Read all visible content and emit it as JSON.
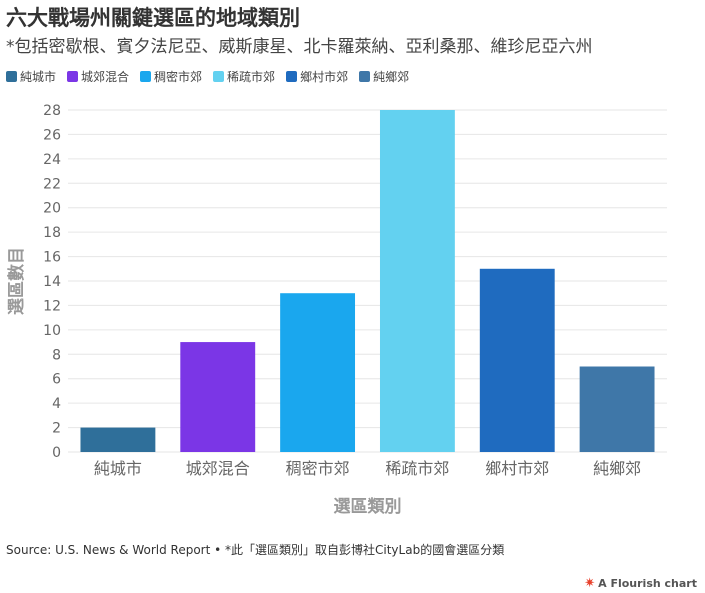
{
  "header": {
    "title": "六大戰場州關鍵選區的地域類別",
    "subtitle": "*包括密歇根、賓夕法尼亞、威斯康星、北卡羅萊納、亞利桑那、維珍尼亞六州"
  },
  "footer": {
    "source": "Source: U.S. News & World Report • *此「選區類別」取自彭博社CityLab的國會選區分類",
    "credit": "A Flourish chart",
    "credit_icon": "flourish-logo-icon"
  },
  "colors": {
    "grid": "#e6e6e6",
    "axis_label": "#999999",
    "tick_label": "#666666"
  },
  "chart_data": {
    "type": "bar",
    "categories": [
      "純城市",
      "城郊混合",
      "稠密市郊",
      "稀疏市郊",
      "鄉村市郊",
      "純鄉郊"
    ],
    "values": [
      2,
      9,
      13,
      28,
      15,
      7
    ],
    "colors": [
      "#2f6f9a",
      "#7b36e6",
      "#1aa7ee",
      "#63d1f0",
      "#1f6bbf",
      "#3f77a8"
    ],
    "legend": [
      "純城市",
      "城郊混合",
      "稠密市郊",
      "稀疏市郊",
      "鄉村市郊",
      "純鄉郊"
    ],
    "legend_position": "top-left",
    "xlabel": "選區類別",
    "ylabel": "選區數目",
    "ylim": [
      0,
      28
    ],
    "yticks": [
      0,
      2,
      4,
      6,
      8,
      10,
      12,
      14,
      16,
      18,
      20,
      22,
      24,
      26,
      28
    ],
    "grid": true
  }
}
